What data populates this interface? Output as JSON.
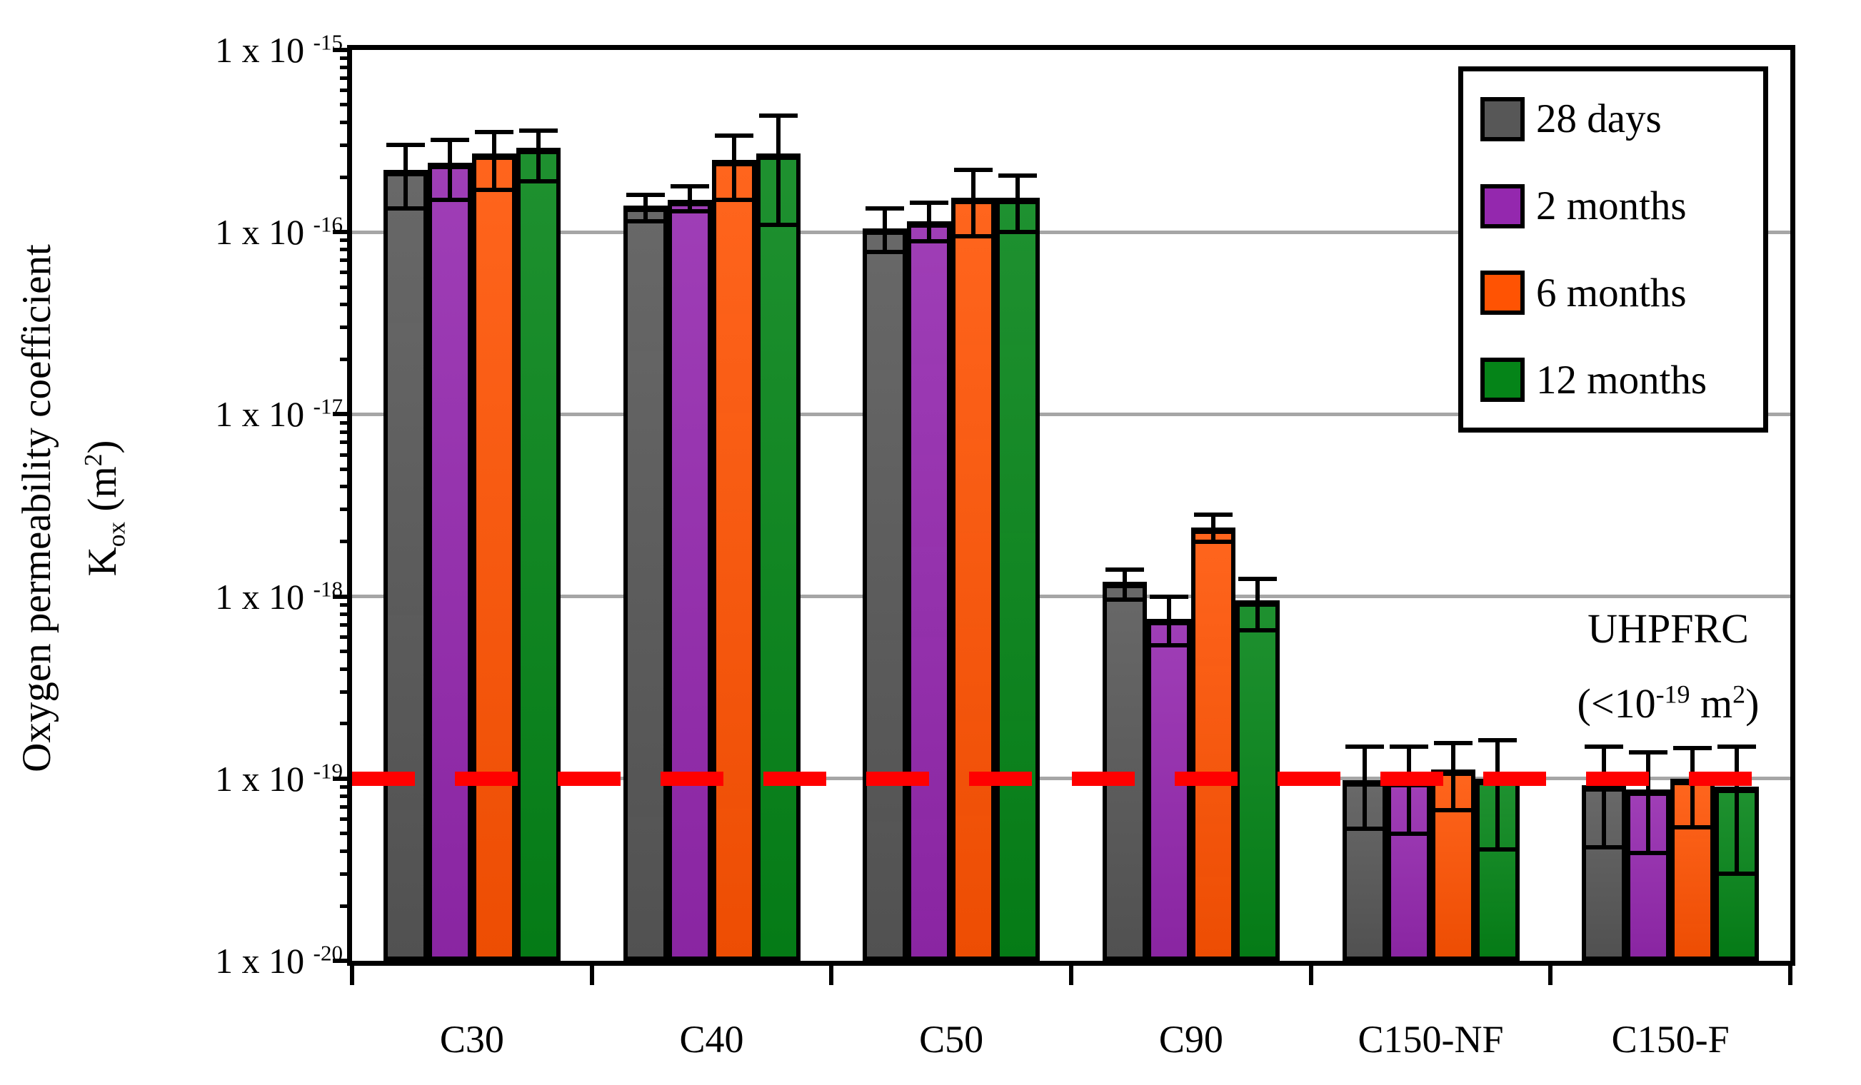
{
  "figure": {
    "background": "#ffffff",
    "text_color": "#000000",
    "gridline_color": "#a6a6a6"
  },
  "chart_data": {
    "type": "bar",
    "y_scale": "log",
    "ylabel_line1": "Oxygen permeability coefficient",
    "ylabel_line2_segments": [
      {
        "t": "K"
      },
      {
        "t": "ox",
        "sub": true
      },
      {
        "t": " (m"
      },
      {
        "t": "2",
        "sup": true
      },
      {
        "t": ")"
      }
    ],
    "y_top_exponent": -15,
    "y_bottom_exponent": -20,
    "y_ticks": [
      {
        "base": "1 x 10",
        "exp": "-15"
      },
      {
        "base": "1 x 10",
        "exp": "-16"
      },
      {
        "base": "1 x 10",
        "exp": "-17"
      },
      {
        "base": "1 x 10",
        "exp": "-18"
      },
      {
        "base": "1 x 10",
        "exp": "-19"
      },
      {
        "base": "1 x 10",
        "exp": "-20"
      }
    ],
    "grid": true,
    "categories": [
      "C30",
      "C40",
      "C50",
      "C90",
      "C150-NF",
      "C150-F"
    ],
    "series": [
      {
        "name": "28 days",
        "color": "#575757",
        "values": [
          2.2e-16,
          1.4e-16,
          1.05e-16,
          1.2e-18,
          9.8e-20,
          9.2e-20
        ],
        "upper": [
          3e-16,
          1.6e-16,
          1.35e-16,
          1.4e-18,
          1.5e-19,
          1.5e-19
        ],
        "lower": [
          1.35e-16,
          1.15e-16,
          7.8e-17,
          9.6e-19,
          5.3e-20,
          4.2e-20
        ]
      },
      {
        "name": "2 months",
        "color": "#9428ae",
        "values": [
          2.4e-16,
          1.5e-16,
          1.15e-16,
          7.5e-19,
          9.7e-20,
          8.7e-20
        ],
        "upper": [
          3.2e-16,
          1.78e-16,
          1.45e-16,
          1e-18,
          1.5e-19,
          1.4e-19
        ],
        "lower": [
          1.5e-16,
          1.3e-16,
          8.9e-17,
          5.4e-19,
          5e-20,
          3.9e-20
        ]
      },
      {
        "name": "6 months",
        "color": "#ff5303",
        "values": [
          2.7e-16,
          2.5e-16,
          1.55e-16,
          2.4e-18,
          1.12e-19,
          1e-19
        ],
        "upper": [
          3.55e-16,
          3.4e-16,
          2.2e-16,
          2.8e-18,
          1.57e-19,
          1.47e-19
        ],
        "lower": [
          1.7e-16,
          1.5e-16,
          9.5e-17,
          2e-18,
          6.7e-20,
          5.4e-20
        ]
      },
      {
        "name": "12 months",
        "color": "#058418",
        "values": [
          2.9e-16,
          2.7e-16,
          1.55e-16,
          9.5e-19,
          1e-19,
          9e-20
        ],
        "upper": [
          3.6e-16,
          4.35e-16,
          2.05e-16,
          1.25e-18,
          1.62e-19,
          1.5e-19
        ],
        "lower": [
          1.9e-16,
          1.1e-16,
          1e-16,
          6.5e-19,
          4.1e-20,
          3e-20
        ]
      }
    ],
    "reference_line": {
      "value": 1e-19,
      "color": "#ff0000",
      "style": "dashed"
    },
    "annotation": {
      "line1": "UHPFRC",
      "line2_segments": [
        {
          "t": "(<10"
        },
        {
          "t": "-19",
          "sup": true
        },
        {
          "t": " m"
        },
        {
          "t": "2",
          "sup": true
        },
        {
          "t": ")"
        }
      ]
    },
    "legend": {
      "position": "top-right",
      "items": [
        "28 days",
        "2 months",
        "6 months",
        "12 months"
      ]
    }
  }
}
